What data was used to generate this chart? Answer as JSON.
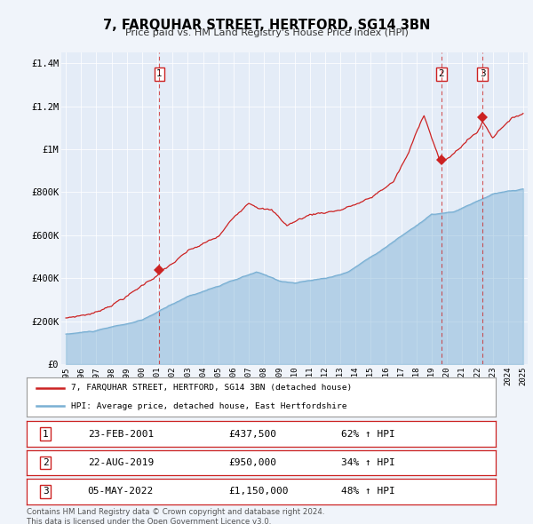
{
  "title": "7, FARQUHAR STREET, HERTFORD, SG14 3BN",
  "subtitle": "Price paid vs. HM Land Registry's House Price Index (HPI)",
  "background_color": "#f0f4fa",
  "plot_bg_color": "#e4ecf7",
  "legend_label_red": "7, FARQUHAR STREET, HERTFORD, SG14 3BN (detached house)",
  "legend_label_blue": "HPI: Average price, detached house, East Hertfordshire",
  "footer": "Contains HM Land Registry data © Crown copyright and database right 2024.\nThis data is licensed under the Open Government Licence v3.0.",
  "transactions": [
    {
      "num": 1,
      "date": "23-FEB-2001",
      "price": 437500,
      "hpi_pct": "62% ↑ HPI",
      "x": 2001.14
    },
    {
      "num": 2,
      "date": "22-AUG-2019",
      "price": 950000,
      "hpi_pct": "34% ↑ HPI",
      "x": 2019.64
    },
    {
      "num": 3,
      "date": "05-MAY-2022",
      "price": 1150000,
      "hpi_pct": "48% ↑ HPI",
      "x": 2022.34
    }
  ],
  "red_color": "#cc2222",
  "blue_color": "#7ab0d4",
  "ylim": [
    0,
    1450000
  ],
  "xlim": [
    1994.7,
    2025.3
  ],
  "yticks": [
    0,
    200000,
    400000,
    600000,
    800000,
    1000000,
    1200000,
    1400000
  ],
  "ytick_labels": [
    "£0",
    "£200K",
    "£400K",
    "£600K",
    "£800K",
    "£1M",
    "£1.2M",
    "£1.4M"
  ],
  "xticks": [
    1995,
    1996,
    1997,
    1998,
    1999,
    2000,
    2001,
    2002,
    2003,
    2004,
    2005,
    2006,
    2007,
    2008,
    2009,
    2010,
    2011,
    2012,
    2013,
    2014,
    2015,
    2016,
    2017,
    2018,
    2019,
    2020,
    2021,
    2022,
    2023,
    2024,
    2025
  ],
  "table_rows": [
    {
      "num": "1",
      "date": "23-FEB-2001",
      "price": "£437,500",
      "hpi": "62% ↑ HPI"
    },
    {
      "num": "2",
      "date": "22-AUG-2019",
      "price": "£950,000",
      "hpi": "34% ↑ HPI"
    },
    {
      "num": "3",
      "date": "05-MAY-2022",
      "price": "£1,150,000",
      "hpi": "48% ↑ HPI"
    }
  ]
}
